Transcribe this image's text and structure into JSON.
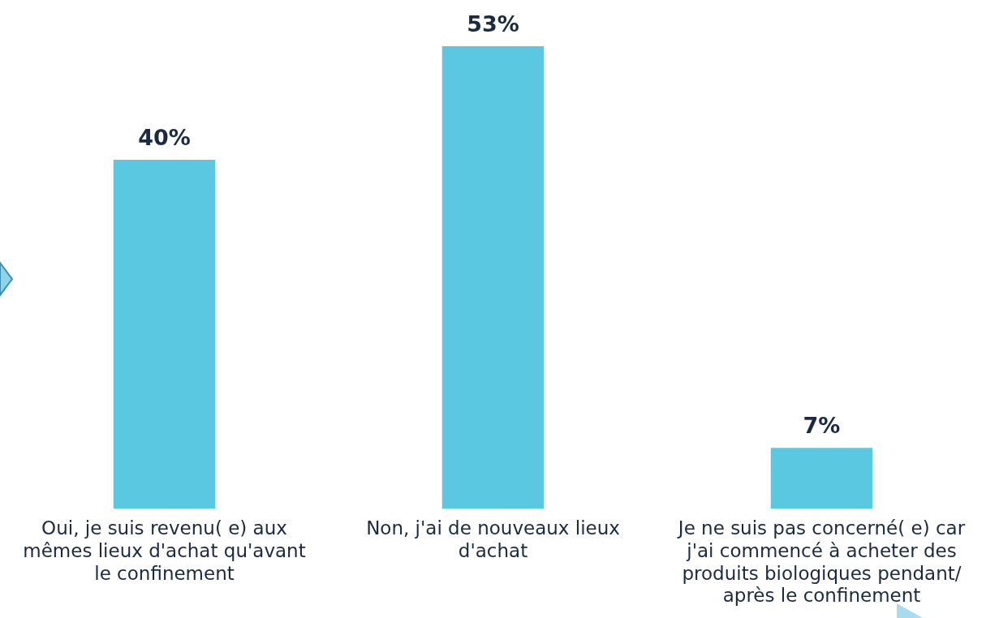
{
  "chart_data": {
    "type": "bar",
    "categories": [
      "Oui, je suis revenu( e) aux mêmes lieux d'achat qu'avant le confinement",
      "Non, j'ai de nouveaux lieux d'achat",
      "Je ne suis pas concerné( e) car j'ai commencé à acheter des produits biologiques pendant/ après le confinement"
    ],
    "values": [
      40,
      53,
      7
    ],
    "color": "#5bc8e2",
    "data_labels": true,
    "value_labels": [
      "40%",
      "53%",
      "7%"
    ],
    "grid": false,
    "legend": false
  }
}
